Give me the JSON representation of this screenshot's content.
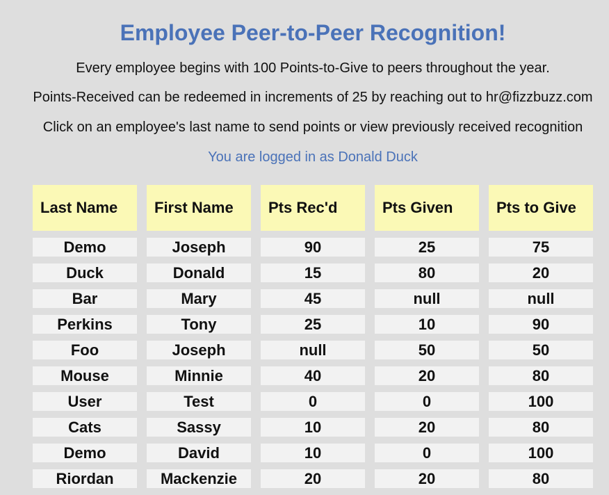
{
  "header": {
    "title": "Employee Peer-to-Peer Recognition!",
    "line1": "Every employee begins with 100 Points-to-Give to peers throughout the year.",
    "line2": "Points-Received can be redeemed in increments of 25 by reaching out to hr@fizzbuzz.com",
    "line3": "Click on an employee's last name to send points or view previously received recognition",
    "login": "You are logged in as Donald Duck"
  },
  "colors": {
    "accent": "#4a72b8",
    "header_cell": "#fbf9b6",
    "body_cell": "#f2f2f2",
    "background": "#dedede"
  },
  "table": {
    "columns": [
      "Last Name",
      "First Name",
      "Pts Rec'd",
      "Pts Given",
      "Pts to Give"
    ],
    "rows": [
      [
        "Demo",
        "Joseph",
        "90",
        "25",
        "75"
      ],
      [
        "Duck",
        "Donald",
        "15",
        "80",
        "20"
      ],
      [
        "Bar",
        "Mary",
        "45",
        "null",
        "null"
      ],
      [
        "Perkins",
        "Tony",
        "25",
        "10",
        "90"
      ],
      [
        "Foo",
        "Joseph",
        "null",
        "50",
        "50"
      ],
      [
        "Mouse",
        "Minnie",
        "40",
        "20",
        "80"
      ],
      [
        "User",
        "Test",
        "0",
        "0",
        "100"
      ],
      [
        "Cats",
        "Sassy",
        "10",
        "20",
        "80"
      ],
      [
        "Demo",
        "David",
        "10",
        "0",
        "100"
      ],
      [
        "Riordan",
        "Mackenzie",
        "20",
        "20",
        "80"
      ]
    ]
  }
}
